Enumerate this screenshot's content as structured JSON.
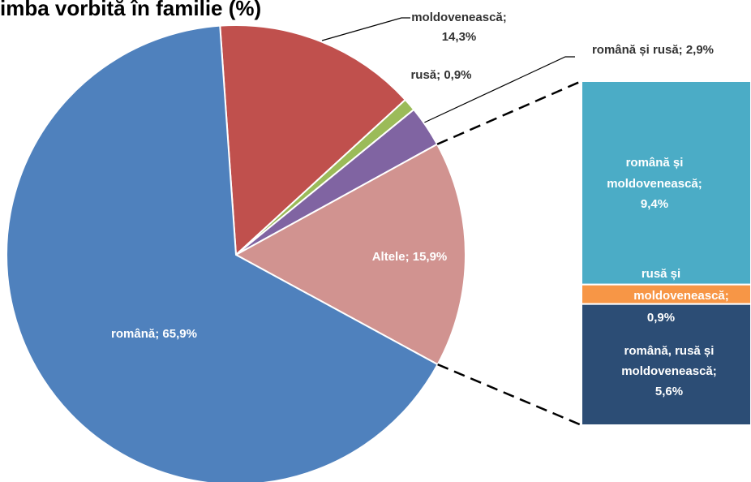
{
  "chart_data": {
    "type": "pie_of_bar",
    "title": "imba vorbită în familie (%)",
    "start_angle": -4,
    "values": [
      14.3,
      0.9,
      2.9,
      15.9,
      65.9
    ],
    "value_labels": [
      [
        "moldovenească;",
        "14,3%"
      ],
      [
        "rusă; 0,9%"
      ],
      [
        "română și rusă; 2,9%"
      ],
      [
        "Altele; 15,9%"
      ],
      [
        "română; 65,9%"
      ]
    ],
    "colors": [
      "#c0504d",
      "#9bbb59",
      "#8064a2",
      "#d19390",
      "#4f81bd"
    ],
    "bar_values": [
      9.4,
      0.9,
      5.6
    ],
    "bar_value_labels": [
      [
        "română și",
        "moldovenească;",
        "9,4%"
      ],
      [
        "rusă și",
        "moldovenească;",
        "0,9%"
      ],
      [
        "română, rusă și",
        "moldovenească;",
        "5,6%"
      ]
    ],
    "bar_colors": [
      "#4bacc6",
      "#f79646",
      "#2c4d75"
    ]
  }
}
